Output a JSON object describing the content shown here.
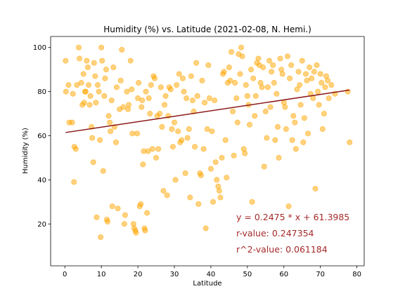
{
  "chart_data": {
    "type": "scatter",
    "title": "Humidity (%) vs. Latitude (2021-02-08, N. Hemi.)",
    "xlabel": "Latitude",
    "ylabel": "Humidity (%)",
    "xlim": [
      -3.9,
      82
    ],
    "ylim": [
      1,
      105
    ],
    "xticks": [
      0,
      10,
      20,
      30,
      40,
      50,
      60,
      70,
      80
    ],
    "yticks": [
      20,
      40,
      60,
      80,
      100
    ],
    "grid": false,
    "colors": {
      "points": "#FFA500",
      "line": "#8B1A1A",
      "annotation": "#A52A2A"
    },
    "regression": {
      "slope": 0.2475,
      "intercept": 61.3985,
      "x_range": [
        0.2,
        78
      ]
    },
    "annotations": [
      "y = 0.2475 * x + 61.3985",
      "r-value: 0.247354",
      "r^2-value: 0.061184"
    ],
    "series": [
      {
        "points": [
          [
            0.2,
            94
          ],
          [
            0.3,
            80
          ],
          [
            1,
            83
          ],
          [
            1.2,
            66
          ],
          [
            2,
            66
          ],
          [
            2.2,
            79
          ],
          [
            2.5,
            39
          ],
          [
            2.6,
            55
          ],
          [
            3,
            54
          ],
          [
            3.3,
            83
          ],
          [
            3.8,
            100
          ],
          [
            4,
            95
          ],
          [
            4.5,
            84
          ],
          [
            4.8,
            74
          ],
          [
            5.1,
            88
          ],
          [
            5.3,
            75
          ],
          [
            5.5,
            80
          ],
          [
            5.7,
            80
          ],
          [
            6,
            94
          ],
          [
            6.3,
            91
          ],
          [
            6.5,
            83
          ],
          [
            6.8,
            74
          ],
          [
            7,
            78
          ],
          [
            7.3,
            64
          ],
          [
            7.5,
            59
          ],
          [
            7.8,
            48
          ],
          [
            8,
            93
          ],
          [
            8.3,
            87
          ],
          [
            8.5,
            75
          ],
          [
            8.7,
            23
          ],
          [
            9,
            83
          ],
          [
            9.3,
            80
          ],
          [
            9.6,
            58
          ],
          [
            9.8,
            14
          ],
          [
            10,
            100
          ],
          [
            10.2,
            94
          ],
          [
            10.5,
            44
          ],
          [
            10.8,
            78
          ],
          [
            11,
            86
          ],
          [
            11.3,
            90
          ],
          [
            11.5,
            22
          ],
          [
            11.7,
            21
          ],
          [
            12,
            69
          ],
          [
            12.3,
            66
          ],
          [
            12.5,
            62
          ],
          [
            12.8,
            76
          ],
          [
            13,
            28
          ],
          [
            13.3,
            91
          ],
          [
            13.6,
            64
          ],
          [
            14,
            57
          ],
          [
            14.2,
            82
          ],
          [
            14.5,
            27
          ],
          [
            15,
            72
          ],
          [
            15.3,
            85
          ],
          [
            15.6,
            99
          ],
          [
            16,
            73
          ],
          [
            16.3,
            20
          ],
          [
            16.5,
            24
          ],
          [
            17,
            80
          ],
          [
            17.3,
            72
          ],
          [
            17.5,
            74
          ],
          [
            18,
            94
          ],
          [
            18.3,
            81
          ],
          [
            18.5,
            61
          ],
          [
            18.8,
            20
          ],
          [
            19,
            18
          ],
          [
            19.3,
            17
          ],
          [
            19.5,
            16
          ],
          [
            19.8,
            61
          ],
          [
            20,
            77
          ],
          [
            20.2,
            84
          ],
          [
            20.5,
            28
          ],
          [
            20.8,
            29
          ],
          [
            21,
            73
          ],
          [
            21.2,
            76
          ],
          [
            21.4,
            47
          ],
          [
            21.6,
            53
          ],
          [
            21.8,
            18
          ],
          [
            22,
            17
          ],
          [
            22.2,
            80
          ],
          [
            22.5,
            25
          ],
          [
            22.8,
            53
          ],
          [
            23,
            77
          ],
          [
            23.3,
            70
          ],
          [
            23.6,
            83
          ],
          [
            24,
            54
          ],
          [
            24.3,
            87
          ],
          [
            24.6,
            86
          ],
          [
            25,
            50
          ],
          [
            25.3,
            69
          ],
          [
            25.6,
            54
          ],
          [
            26,
            70
          ],
          [
            26.3,
            82
          ],
          [
            26.6,
            64
          ],
          [
            27,
            35
          ],
          [
            27.3,
            74
          ],
          [
            27.6,
            78
          ],
          [
            28,
            33
          ],
          [
            28.3,
            69
          ],
          [
            28.6,
            82
          ],
          [
            29,
            81
          ],
          [
            29.3,
            63
          ],
          [
            29.6,
            55
          ],
          [
            30,
            66
          ],
          [
            30.3,
            40
          ],
          [
            30.6,
            83
          ],
          [
            31,
            62
          ],
          [
            31.3,
            88
          ],
          [
            31.6,
            57
          ],
          [
            32,
            58
          ],
          [
            32.3,
            86
          ],
          [
            32.6,
            80
          ],
          [
            33,
            43
          ],
          [
            33.3,
            77
          ],
          [
            33.6,
            59
          ],
          [
            34,
            63
          ],
          [
            34.3,
            32
          ],
          [
            34.6,
            87
          ],
          [
            35,
            76
          ],
          [
            35.3,
            71
          ],
          [
            35.6,
            55
          ],
          [
            36,
            93
          ],
          [
            36.3,
            78
          ],
          [
            36.6,
            29
          ],
          [
            37,
            43
          ],
          [
            37.3,
            42
          ],
          [
            37.6,
            85
          ],
          [
            38,
            54
          ],
          [
            38.3,
            75
          ],
          [
            38.6,
            18
          ],
          [
            39,
            63
          ],
          [
            39.3,
            92
          ],
          [
            39.6,
            77
          ],
          [
            40,
            45
          ],
          [
            40.3,
            62
          ],
          [
            40.6,
            30
          ],
          [
            41,
            76
          ],
          [
            41.3,
            48
          ],
          [
            41.6,
            40
          ],
          [
            42,
            37
          ],
          [
            42.3,
            35
          ],
          [
            42.6,
            32
          ],
          [
            43,
            50
          ],
          [
            43.3,
            88
          ],
          [
            43.6,
            89
          ],
          [
            44,
            58
          ],
          [
            44.3,
            41
          ],
          [
            44.6,
            84
          ],
          [
            45,
            91
          ],
          [
            45.3,
            85
          ],
          [
            45.6,
            98
          ],
          [
            46,
            71
          ],
          [
            46.3,
            51
          ],
          [
            46.6,
            84
          ],
          [
            47,
            77
          ],
          [
            47.3,
            66
          ],
          [
            47.6,
            97
          ],
          [
            48,
            88
          ],
          [
            48.3,
            100
          ],
          [
            48.6,
            96
          ],
          [
            49,
            54
          ],
          [
            49.3,
            52
          ],
          [
            49.6,
            83
          ],
          [
            50,
            78
          ],
          [
            50.3,
            74
          ],
          [
            50.6,
            65
          ],
          [
            51,
            90
          ],
          [
            51.3,
            30
          ],
          [
            51.6,
            86
          ],
          [
            52,
            69
          ],
          [
            52.3,
            78
          ],
          [
            52.6,
            93
          ],
          [
            53,
            95
          ],
          [
            53.3,
            92
          ],
          [
            53.6,
            84
          ],
          [
            54,
            82
          ],
          [
            54.3,
            91
          ],
          [
            54.6,
            46
          ],
          [
            55,
            71
          ],
          [
            55.3,
            59
          ],
          [
            55.6,
            82
          ],
          [
            56,
            94
          ],
          [
            56.3,
            73
          ],
          [
            56.6,
            89
          ],
          [
            57,
            92
          ],
          [
            57.3,
            84
          ],
          [
            57.6,
            58
          ],
          [
            58,
            79
          ],
          [
            58.3,
            64
          ],
          [
            58.6,
            50
          ],
          [
            59,
            95
          ],
          [
            59.3,
            90
          ],
          [
            59.6,
            88
          ],
          [
            60,
            75
          ],
          [
            60.3,
            73
          ],
          [
            60.6,
            63
          ],
          [
            61,
            96
          ],
          [
            61.3,
            28
          ],
          [
            61.6,
            86
          ],
          [
            62,
            92
          ],
          [
            62.3,
            58
          ],
          [
            62.6,
            69
          ],
          [
            63,
            66
          ],
          [
            63.3,
            54
          ],
          [
            63.6,
            81
          ],
          [
            64,
            89
          ],
          [
            64.3,
            83
          ],
          [
            64.6,
            74
          ],
          [
            65,
            94
          ],
          [
            65.3,
            57
          ],
          [
            65.6,
            68
          ],
          [
            66,
            88
          ],
          [
            66.3,
            85
          ],
          [
            66.6,
            61
          ],
          [
            67,
            91
          ],
          [
            67.3,
            79
          ],
          [
            67.6,
            86
          ],
          [
            68,
            77
          ],
          [
            68.3,
            89
          ],
          [
            68.6,
            36
          ],
          [
            69,
            92
          ],
          [
            69.3,
            80
          ],
          [
            69.6,
            74
          ],
          [
            70,
            88
          ],
          [
            70.3,
            84
          ],
          [
            70.6,
            63
          ],
          [
            71,
            70
          ],
          [
            71.3,
            82
          ],
          [
            71.6,
            87
          ],
          [
            72,
            85
          ],
          [
            72.3,
            77
          ],
          [
            73,
            83
          ],
          [
            74,
            79
          ],
          [
            77.5,
            80
          ],
          [
            78,
            57
          ]
        ]
      }
    ]
  }
}
